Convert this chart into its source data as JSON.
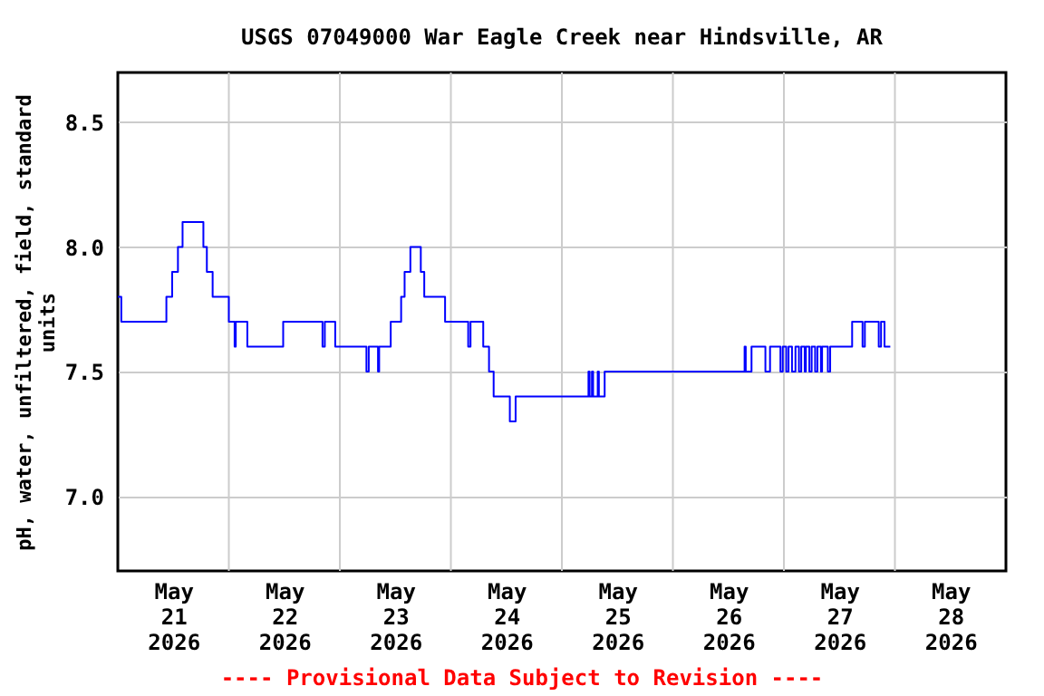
{
  "chart_data": {
    "type": "step",
    "title": "USGS 07049000 War Eagle Creek near Hindsville, AR",
    "ylabel": "pH, water, unfiltered, field, standard units",
    "annotations": [
      "---- Provisional Data Subject to Revision ----"
    ],
    "x": [
      "2026-05-21T00:00",
      "2026-05-21T00:45",
      "2026-05-21T10:30",
      "2026-05-21T11:45",
      "2026-05-21T13:00",
      "2026-05-21T14:00",
      "2026-05-21T18:30",
      "2026-05-21T19:15",
      "2026-05-21T20:30",
      "2026-05-22T00:00",
      "2026-05-22T01:15",
      "2026-05-22T01:30",
      "2026-05-22T04:00",
      "2026-05-22T11:45",
      "2026-05-22T20:15",
      "2026-05-22T20:45",
      "2026-05-22T23:00",
      "2026-05-23T05:45",
      "2026-05-23T06:15",
      "2026-05-23T08:15",
      "2026-05-23T08:30",
      "2026-05-23T11:00",
      "2026-05-23T13:15",
      "2026-05-23T14:00",
      "2026-05-23T15:15",
      "2026-05-23T17:30",
      "2026-05-23T18:15",
      "2026-05-23T22:45",
      "2026-05-24T03:45",
      "2026-05-24T04:15",
      "2026-05-24T07:00",
      "2026-05-24T08:15",
      "2026-05-24T09:15",
      "2026-05-24T12:45",
      "2026-05-24T14:00",
      "2026-05-25T05:45",
      "2026-05-25T06:00",
      "2026-05-25T06:30",
      "2026-05-25T06:45",
      "2026-05-25T07:45",
      "2026-05-25T08:00",
      "2026-05-25T09:15",
      "2026-05-26T15:30",
      "2026-05-26T15:45",
      "2026-05-26T17:00",
      "2026-05-26T20:00",
      "2026-05-26T21:00",
      "2026-05-26T23:15",
      "2026-05-26T23:45",
      "2026-05-27T00:30",
      "2026-05-27T01:00",
      "2026-05-27T01:45",
      "2026-05-27T02:30",
      "2026-05-27T03:15",
      "2026-05-27T03:45",
      "2026-05-27T04:30",
      "2026-05-27T04:45",
      "2026-05-27T05:30",
      "2026-05-27T06:00",
      "2026-05-27T06:45",
      "2026-05-27T07:15",
      "2026-05-27T08:00",
      "2026-05-27T08:15",
      "2026-05-27T09:30",
      "2026-05-27T10:00",
      "2026-05-27T14:45",
      "2026-05-27T17:00",
      "2026-05-27T17:30",
      "2026-05-27T20:30",
      "2026-05-27T21:00",
      "2026-05-27T21:45",
      "2026-05-27T23:00"
    ],
    "series": [
      {
        "color": "#0000ff",
        "values": [
          7.8,
          7.7,
          7.8,
          7.9,
          8.0,
          8.1,
          8.0,
          7.9,
          7.8,
          7.7,
          7.6,
          7.7,
          7.6,
          7.7,
          7.6,
          7.7,
          7.6,
          7.5,
          7.6,
          7.5,
          7.6,
          7.7,
          7.8,
          7.9,
          8.0,
          7.9,
          7.8,
          7.7,
          7.6,
          7.7,
          7.6,
          7.5,
          7.4,
          7.3,
          7.4,
          7.5,
          7.4,
          7.5,
          7.4,
          7.5,
          7.4,
          7.5,
          7.6,
          7.5,
          7.6,
          7.5,
          7.6,
          7.5,
          7.6,
          7.5,
          7.6,
          7.5,
          7.6,
          7.5,
          7.6,
          7.5,
          7.6,
          7.5,
          7.6,
          7.5,
          7.6,
          7.5,
          7.6,
          7.5,
          7.6,
          7.7,
          7.6,
          7.7,
          7.6,
          7.7,
          7.6,
          7.6
        ]
      }
    ],
    "xlim": [
      "2026-05-21T00:00",
      "2026-05-29T00:00"
    ],
    "xticks": [
      {
        "value": "2026-05-21T12:00",
        "label": "May 21 2026"
      },
      {
        "value": "2026-05-22T12:00",
        "label": "May 22 2026"
      },
      {
        "value": "2026-05-23T12:00",
        "label": "May 23 2026"
      },
      {
        "value": "2026-05-24T12:00",
        "label": "May 24 2026"
      },
      {
        "value": "2026-05-25T12:00",
        "label": "May 25 2026"
      },
      {
        "value": "2026-05-26T12:00",
        "label": "May 26 2026"
      },
      {
        "value": "2026-05-27T12:00",
        "label": "May 27 2026"
      },
      {
        "value": "2026-05-28T12:00",
        "label": "May 28 2026"
      },
      {
        "value": "2026-05-22T00:00",
        "label": null
      },
      {
        "value": "2026-05-23T00:00",
        "label": null
      },
      {
        "value": "2026-05-24T00:00",
        "label": null
      },
      {
        "value": "2026-05-25T00:00",
        "label": null
      },
      {
        "value": "2026-05-26T00:00",
        "label": null
      },
      {
        "value": "2026-05-27T00:00",
        "label": null
      },
      {
        "value": "2026-05-28T00:00",
        "label": null
      }
    ],
    "ylim": [
      6.7,
      8.7
    ],
    "yticks": [
      {
        "value": 7.0,
        "label": "7.0"
      },
      {
        "value": 7.5,
        "label": "7.5"
      },
      {
        "value": 8.0,
        "label": "8.0"
      },
      {
        "value": 8.5,
        "label": "8.5"
      }
    ],
    "grid": true
  }
}
